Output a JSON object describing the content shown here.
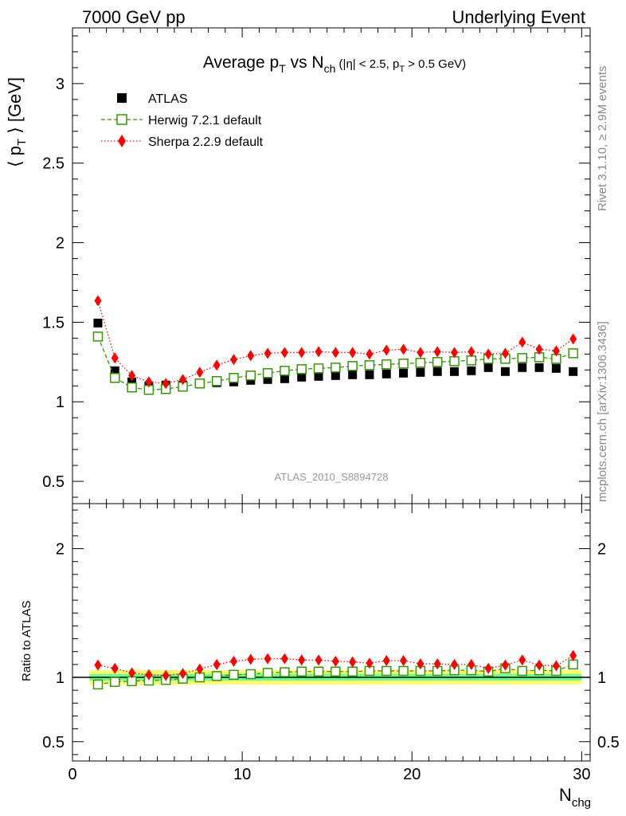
{
  "header": {
    "left": "7000 GeV pp",
    "right": "Underlying Event"
  },
  "title": {
    "main": "Average p",
    "sub1": "T",
    "mid": " vs N",
    "sub2": "ch",
    "tail": " (|η| < 2.5, p",
    "sub3": "T",
    "end": " > 0.5 GeV)"
  },
  "side_labels": {
    "rivet": "Rivet 3.1.10, ≥ 2.9M events",
    "mcplots": "mcplots.cern.ch [arXiv:1306.3436]"
  },
  "watermark": "ATLAS_2010_S8894728",
  "ylabel_top": {
    "pre": "⟨ p",
    "sub": "T",
    "post": " ⟩ [GeV]"
  },
  "ylabel_bottom": "Ratio to ATLAS",
  "xlabel": {
    "main": "N",
    "sub": "chg"
  },
  "legend": [
    {
      "label": "ATLAS",
      "color": "#000000",
      "marker": "square-filled"
    },
    {
      "label": "Herwig 7.2.1 default",
      "color": "#339900",
      "marker": "square-open"
    },
    {
      "label": "Sherpa 2.2.9 default",
      "color": "#ff0000",
      "marker": "diamond-filled"
    }
  ],
  "chart_data": {
    "type": "scatter",
    "x": [
      1.5,
      2.5,
      3.5,
      4.5,
      5.5,
      6.5,
      7.5,
      8.5,
      9.5,
      10.5,
      11.5,
      12.5,
      13.5,
      14.5,
      15.5,
      16.5,
      17.5,
      18.5,
      19.5,
      20.5,
      21.5,
      22.5,
      23.5,
      24.5,
      25.5,
      26.5,
      27.5,
      28.5,
      29.5
    ],
    "xlim": [
      0,
      30.5
    ],
    "xticks": [
      0,
      10,
      20,
      30
    ],
    "top_panel": {
      "ylim": [
        0.36,
        3.35
      ],
      "yticks": [
        0.5,
        1,
        1.5,
        2,
        2.5,
        3
      ],
      "series": [
        {
          "name": "ATLAS",
          "color": "#000000",
          "marker": "square-filled",
          "values": [
            1.495,
            1.195,
            1.125,
            1.1,
            1.105,
            1.105,
            1.115,
            1.12,
            1.125,
            1.135,
            1.14,
            1.145,
            1.155,
            1.16,
            1.165,
            1.17,
            1.17,
            1.175,
            1.18,
            1.185,
            1.19,
            1.19,
            1.195,
            1.215,
            1.19,
            1.215,
            1.215,
            1.21,
            1.19
          ]
        },
        {
          "name": "Herwig 7.2.1 default",
          "color": "#339900",
          "marker": "square-open",
          "values": [
            1.41,
            1.15,
            1.09,
            1.075,
            1.08,
            1.095,
            1.115,
            1.13,
            1.15,
            1.165,
            1.18,
            1.195,
            1.205,
            1.21,
            1.215,
            1.225,
            1.23,
            1.235,
            1.24,
            1.245,
            1.25,
            1.255,
            1.26,
            1.27,
            1.27,
            1.275,
            1.28,
            1.27,
            1.305
          ]
        },
        {
          "name": "Sherpa 2.2.9 default",
          "color": "#ff0000",
          "marker": "diamond-filled",
          "values": [
            1.635,
            1.275,
            1.165,
            1.125,
            1.115,
            1.14,
            1.185,
            1.23,
            1.265,
            1.29,
            1.305,
            1.31,
            1.31,
            1.315,
            1.31,
            1.31,
            1.3,
            1.325,
            1.33,
            1.31,
            1.315,
            1.31,
            1.315,
            1.3,
            1.305,
            1.375,
            1.33,
            1.32,
            1.395
          ]
        }
      ]
    },
    "ratio_panel": {
      "ylim": [
        0.35,
        2.35
      ],
      "yticks": [
        0.5,
        1,
        2
      ],
      "reference": 1.0,
      "band_inner": {
        "color": "#66ff99",
        "lower": 0.975,
        "upper": 1.025
      },
      "band_outer": {
        "color": "#ffff66",
        "lower": 0.945,
        "upper": 1.055
      },
      "series": [
        {
          "name": "Herwig 7.2.1 default",
          "color": "#339900",
          "marker": "square-open",
          "values": [
            0.945,
            0.965,
            0.97,
            0.975,
            0.98,
            0.99,
            1.0,
            1.01,
            1.02,
            1.025,
            1.035,
            1.04,
            1.045,
            1.045,
            1.045,
            1.045,
            1.05,
            1.05,
            1.05,
            1.05,
            1.05,
            1.055,
            1.055,
            1.045,
            1.07,
            1.05,
            1.055,
            1.05,
            1.1
          ]
        },
        {
          "name": "Sherpa 2.2.9 default",
          "color": "#ff0000",
          "marker": "diamond-filled",
          "values": [
            1.095,
            1.07,
            1.035,
            1.02,
            1.015,
            1.03,
            1.065,
            1.1,
            1.125,
            1.14,
            1.145,
            1.145,
            1.135,
            1.135,
            1.125,
            1.12,
            1.11,
            1.13,
            1.13,
            1.105,
            1.105,
            1.1,
            1.1,
            1.07,
            1.095,
            1.135,
            1.095,
            1.09,
            1.17
          ]
        }
      ]
    }
  }
}
